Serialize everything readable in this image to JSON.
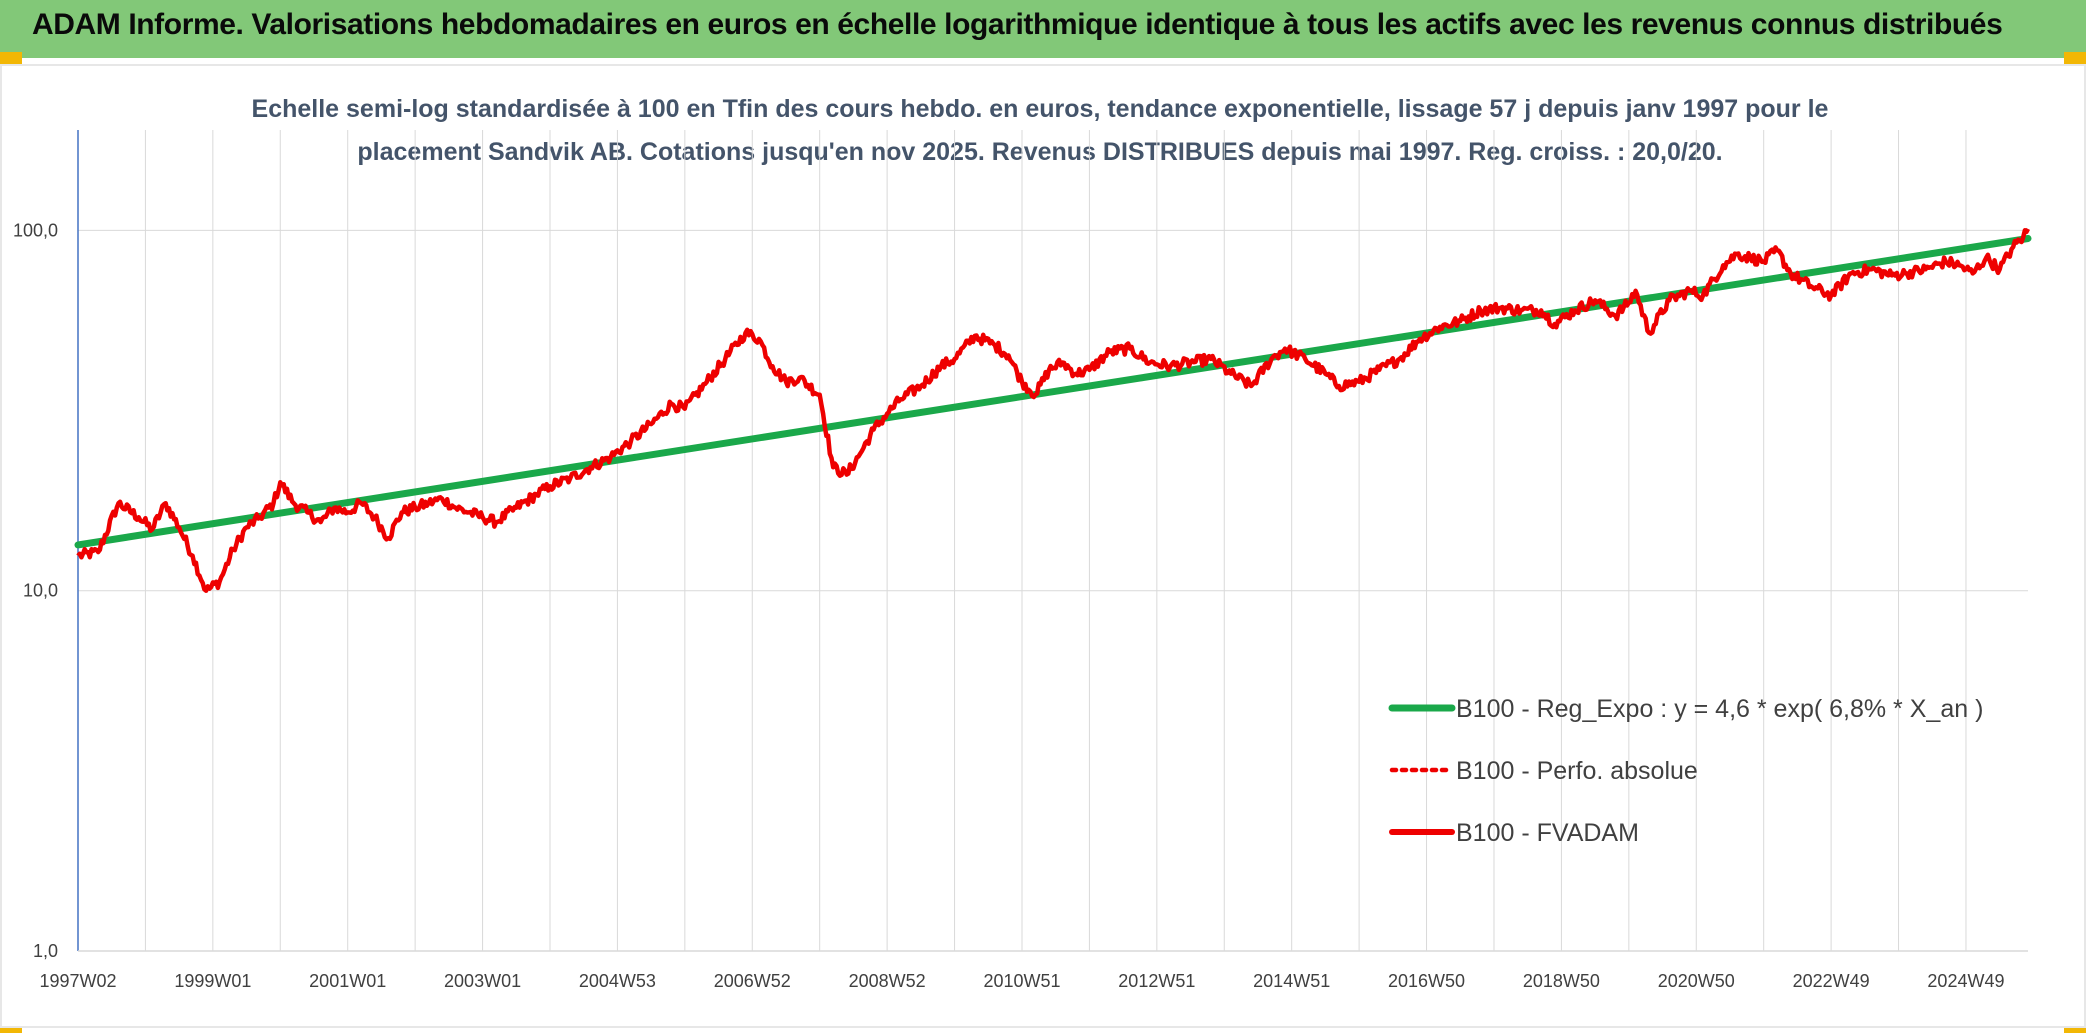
{
  "header": {
    "title": "ADAM Informe. Valorisations hebdomadaires en euros en échelle logarithmique identique à tous les actifs avec les revenus connus distribués"
  },
  "colors": {
    "banner": "#82c878",
    "corner": "#f2b705",
    "reg_line": "#1aa84a",
    "fvadam": "#ee0000",
    "perfo": "#ee0000",
    "subtitle": "#44546a",
    "grid": "#d9d9d9",
    "axis": "#4472c4"
  },
  "chart_data": {
    "type": "line",
    "title": "Echelle semi-log standardisée à 100 en Tfin des cours hebdo. en euros, tendance exponentielle, lissage 57 j depuis janv 1997 pour le placement Sandvik AB. Cotations jusqu'en nov 2025. Revenus DISTRIBUES depuis mai 1997. Reg. croiss. : 20,0/20.",
    "xlabel": "",
    "ylabel": "",
    "y_scale": "log",
    "ylim": [
      1,
      100
    ],
    "y_axis_max": 190,
    "y_ticks": [
      "1,0",
      "10,0",
      "100,0"
    ],
    "y_tick_values": [
      1,
      10,
      100
    ],
    "xlim": [
      1997.0,
      2025.92
    ],
    "x_ticks": [
      "1997W02",
      "1999W01",
      "2001W01",
      "2003W01",
      "2004W53",
      "2006W52",
      "2008W52",
      "2010W51",
      "2012W51",
      "2014W51",
      "2016W50",
      "2018W50",
      "2020W50",
      "2022W49",
      "2024W49"
    ],
    "x_tick_years": [
      1997.0,
      1999.0,
      2001.0,
      2003.0,
      2005.0,
      2007.0,
      2009.0,
      2011.0,
      2013.0,
      2015.0,
      2017.0,
      2019.0,
      2021.0,
      2023.0,
      2025.0
    ],
    "legend": {
      "position": "bottom-right",
      "entries": [
        "B100 - Reg_Expo : y = 4,6 * exp( 6,8% *  X_an )",
        "B100 - Perfo. absolue",
        "B100 - FVADAM"
      ]
    },
    "series": [
      {
        "name": "B100 - Reg_Expo : y = 4,6 * exp( 6,8% *  X_an )",
        "style": "solid-thick-green",
        "x": [
          1997.0,
          2025.92
        ],
        "y": [
          13.4,
          95.0
        ]
      },
      {
        "name": "B100 - Perfo. absolue",
        "style": "dotted-red",
        "x": [],
        "y": []
      },
      {
        "name": "B100 - FVADAM",
        "style": "solid-red",
        "x": [
          1997.0,
          1997.3,
          1997.6,
          1997.9,
          1998.1,
          1998.3,
          1998.5,
          1998.7,
          1998.9,
          1999.1,
          1999.3,
          1999.5,
          1999.7,
          1999.9,
          2000.0,
          2000.2,
          2000.4,
          2000.6,
          2000.8,
          2001.0,
          2001.2,
          2001.4,
          2001.6,
          2001.8,
          2002.0,
          2002.2,
          2002.4,
          2002.6,
          2002.8,
          2003.0,
          2003.2,
          2003.5,
          2003.8,
          2004.0,
          2004.3,
          2004.6,
          2004.9,
          2005.2,
          2005.5,
          2005.8,
          2006.0,
          2006.3,
          2006.6,
          2006.9,
          2007.1,
          2007.3,
          2007.5,
          2007.7,
          2008.0,
          2008.2,
          2008.4,
          2008.6,
          2008.8,
          2009.0,
          2009.2,
          2009.5,
          2009.8,
          2010.0,
          2010.3,
          2010.6,
          2010.8,
          2011.0,
          2011.2,
          2011.4,
          2011.6,
          2011.8,
          2012.0,
          2012.3,
          2012.6,
          2012.9,
          2013.2,
          2013.5,
          2013.8,
          2014.1,
          2014.4,
          2014.7,
          2014.9,
          2015.2,
          2015.5,
          2015.7,
          2016.0,
          2016.3,
          2016.6,
          2016.9,
          2017.2,
          2017.5,
          2017.8,
          2018.1,
          2018.4,
          2018.7,
          2018.9,
          2019.2,
          2019.5,
          2019.8,
          2020.0,
          2020.1,
          2020.3,
          2020.6,
          2020.9,
          2021.1,
          2021.4,
          2021.6,
          2021.8,
          2022.0,
          2022.2,
          2022.4,
          2022.7,
          2023.0,
          2023.3,
          2023.6,
          2023.9,
          2024.1,
          2024.4,
          2024.7,
          2024.9,
          2025.1,
          2025.3,
          2025.5,
          2025.7,
          2025.85,
          2025.92
        ],
        "y": [
          12.5,
          12.8,
          17.5,
          16.0,
          14.8,
          17.5,
          15.0,
          12.5,
          10.0,
          10.6,
          13.0,
          15.0,
          16.0,
          17.5,
          20.0,
          17.5,
          16.5,
          15.5,
          17.0,
          16.5,
          17.5,
          16.0,
          14.0,
          16.5,
          17.0,
          17.5,
          18.0,
          17.0,
          16.5,
          16.0,
          15.5,
          17.0,
          18.5,
          19.5,
          20.5,
          22.0,
          23.5,
          26.0,
          29.0,
          33.0,
          32.0,
          37.5,
          44.0,
          52.0,
          50.0,
          42.0,
          38.0,
          39.0,
          35.0,
          22.0,
          21.0,
          24.0,
          28.0,
          31.0,
          34.0,
          37.0,
          42.0,
          44.0,
          51.0,
          48.0,
          45.0,
          38.0,
          35.0,
          41.0,
          43.0,
          40.0,
          41.0,
          46.0,
          47.0,
          43.0,
          42.0,
          43.0,
          44.0,
          40.0,
          37.0,
          44.0,
          47.0,
          44.0,
          40.0,
          37.0,
          38.0,
          41.0,
          44.0,
          50.0,
          54.0,
          56.0,
          60.0,
          61.0,
          60.0,
          60.0,
          55.0,
          60.0,
          64.0,
          58.0,
          63.0,
          68.0,
          52.0,
          64.0,
          68.0,
          66.0,
          80.0,
          86.0,
          84.0,
          82.0,
          88.0,
          76.0,
          70.0,
          66.0,
          76.0,
          78.0,
          75.0,
          76.0,
          78.0,
          82.0,
          80.0,
          76.0,
          84.0,
          78.0,
          90.0,
          96.0,
          101.0
        ]
      }
    ]
  }
}
